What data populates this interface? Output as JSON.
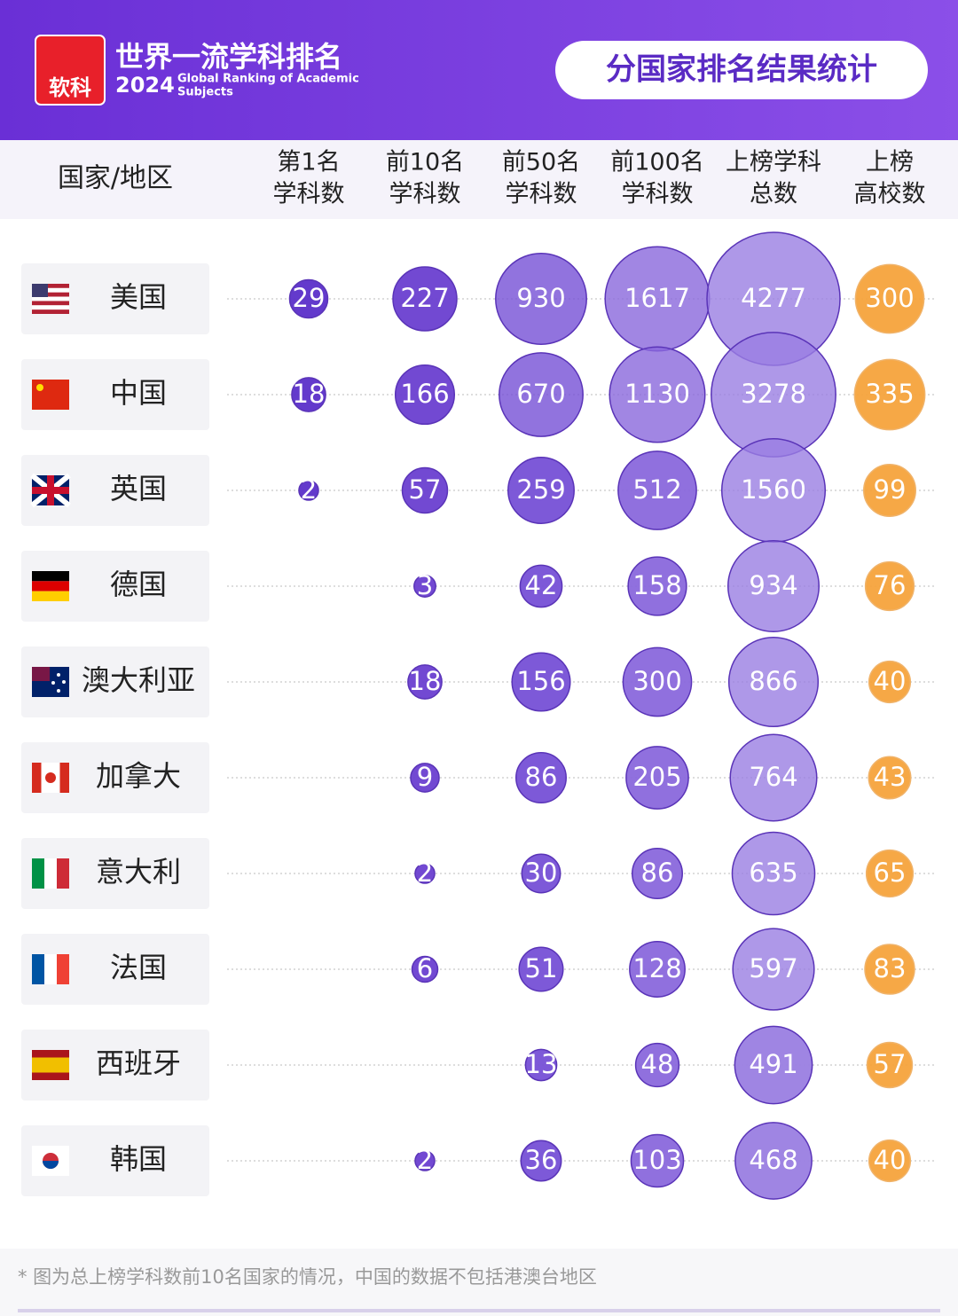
{
  "header": {
    "logo_text": "软科",
    "title": "世界一流学科排名",
    "year": "2024",
    "subtitle_line1": "Global Ranking of Academic",
    "subtitle_line2": "Subjects",
    "badge": "分国家排名结果统计"
  },
  "chart_data": {
    "type": "bubble-matrix",
    "row_header": "国家/地区",
    "categories": [
      "美国",
      "中国",
      "英国",
      "德国",
      "澳大利亚",
      "加拿大",
      "意大利",
      "法国",
      "西班牙",
      "韩国"
    ],
    "series": [
      {
        "header": [
          "第1名",
          "学科数"
        ],
        "color": "#5b2fc9",
        "values": [
          29,
          18,
          2,
          null,
          null,
          null,
          null,
          null,
          null,
          null
        ]
      },
      {
        "header": [
          "前10名",
          "学科数"
        ],
        "color": "#6a3fd0",
        "values": [
          227,
          166,
          57,
          3,
          18,
          9,
          2,
          6,
          null,
          2
        ]
      },
      {
        "header": [
          "前50名",
          "学科数"
        ],
        "color": "#7650d6",
        "values": [
          930,
          670,
          259,
          42,
          156,
          86,
          30,
          51,
          13,
          36
        ]
      },
      {
        "header": [
          "前100名",
          "学科数"
        ],
        "color": "#8a68dc",
        "values": [
          1617,
          1130,
          512,
          158,
          300,
          205,
          86,
          128,
          48,
          103
        ]
      },
      {
        "header": [
          "上榜学科",
          "总数"
        ],
        "color": "#9a7ee2",
        "values": [
          4277,
          3278,
          1560,
          934,
          866,
          764,
          635,
          597,
          491,
          468
        ]
      },
      {
        "header": [
          "上榜",
          "高校数"
        ],
        "color": "#f5a33c",
        "values": [
          300,
          335,
          99,
          76,
          40,
          43,
          65,
          83,
          57,
          40
        ]
      }
    ],
    "footnote": "* 图为总上榜学科数前10名国家的情况，中国的数据不包括港澳台地区"
  }
}
